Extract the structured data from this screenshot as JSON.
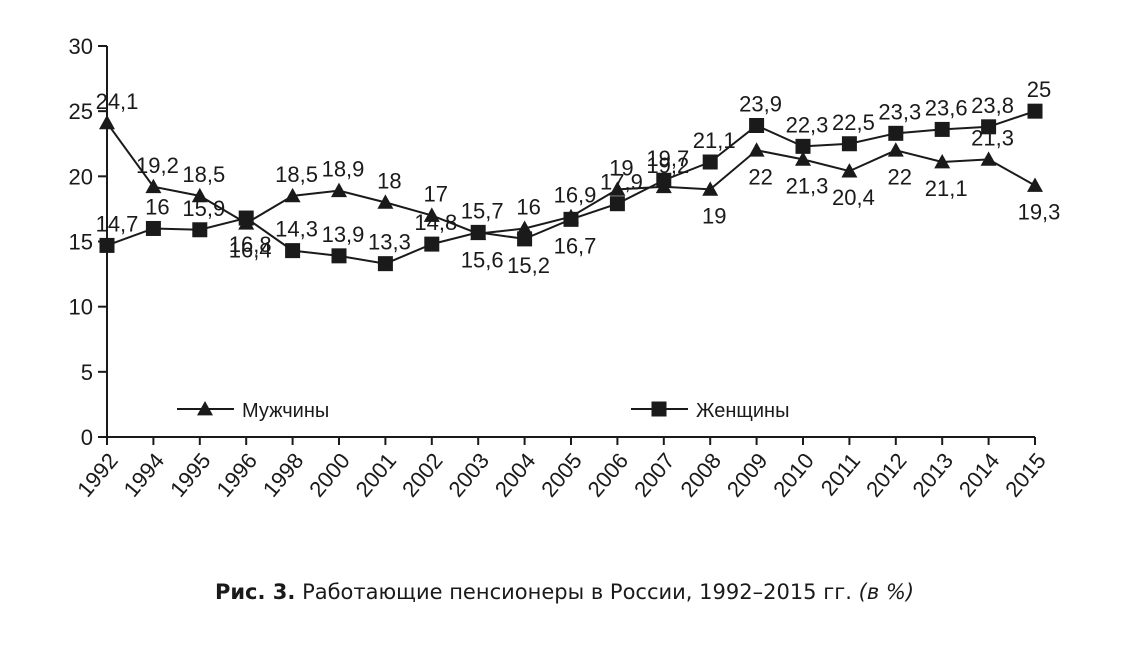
{
  "chart_data": {
    "type": "line",
    "categories": [
      "1992",
      "1994",
      "1995",
      "1996",
      "1998",
      "2000",
      "2001",
      "2002",
      "2003",
      "2004",
      "2005",
      "2006",
      "2007",
      "2008",
      "2009",
      "2010",
      "2011",
      "2012",
      "2013",
      "2014",
      "2015"
    ],
    "ylim": [
      0,
      30
    ],
    "yticks": [
      "0",
      "5",
      "10",
      "15",
      "20",
      "25",
      "30"
    ],
    "grid": false,
    "legend_position": "bottom, inside plot",
    "series": [
      {
        "name": "Мужчины",
        "marker": "triangle",
        "color": "#1a1a1a",
        "values": [
          24.1,
          19.2,
          18.5,
          16.4,
          18.5,
          18.9,
          18,
          17,
          15.6,
          16,
          16.9,
          19,
          19.2,
          19,
          22,
          21.3,
          20.4,
          22,
          21.1,
          21.3,
          19.3
        ],
        "labels": [
          "24,1",
          "19,2",
          "18,5",
          "16,4",
          "18,5",
          "18,9",
          "18",
          "17",
          "15,6",
          "16",
          "16,9",
          "19",
          "19,2",
          "19",
          "22",
          "21,3",
          "20,4",
          "22",
          "21,1",
          "21,3",
          "19,3"
        ]
      },
      {
        "name": "Женщины",
        "marker": "square",
        "color": "#1a1a1a",
        "values": [
          14.7,
          16,
          15.9,
          16.8,
          14.3,
          13.9,
          13.3,
          14.8,
          15.7,
          15.2,
          16.7,
          17.9,
          19.7,
          21.1,
          23.9,
          22.3,
          22.5,
          23.3,
          23.6,
          23.8,
          25
        ],
        "labels": [
          "14,7",
          "16",
          "15,9",
          "16,8",
          "14,3",
          "13,9",
          "13,3",
          "14,8",
          "15,7",
          "15,2",
          "16,7",
          "17,9",
          "19,7",
          "21,1",
          "23,9",
          "22,3",
          "22,5",
          "23,3",
          "23,6",
          "23,8",
          "25"
        ]
      }
    ]
  },
  "caption": {
    "prefix": "Рис. 3.",
    "text": " Работающие пенсионеры в России, 1992–2015 гг. ",
    "suffix": "(в %)"
  }
}
